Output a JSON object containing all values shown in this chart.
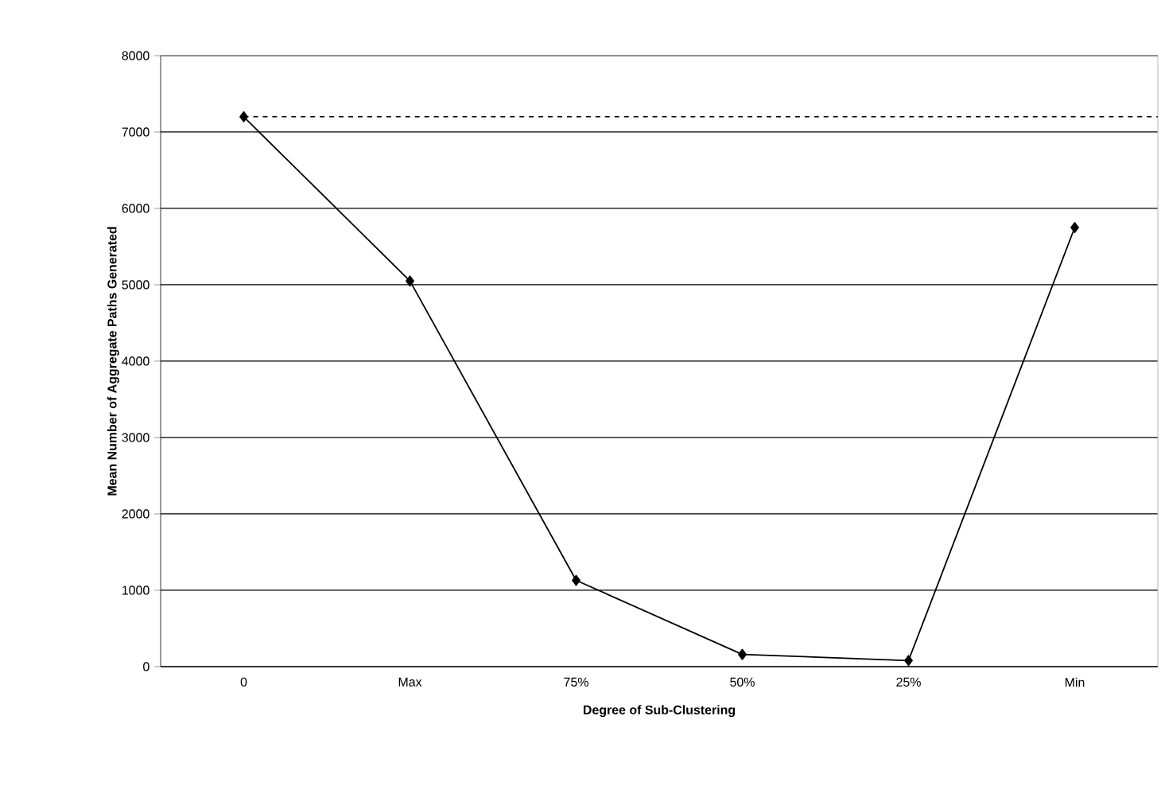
{
  "chart_data": {
    "type": "line",
    "xlabel": "Degree of Sub-Clustering",
    "ylabel": "Mean Number of Aggregate Paths Generated",
    "categories": [
      "0",
      "Max",
      "75%",
      "50%",
      "25%",
      "Min"
    ],
    "series": [
      {
        "color": "#000000",
        "values": [
          7200,
          5050,
          1130,
          160,
          80,
          5750
        ]
      }
    ],
    "ylim": [
      0,
      8000
    ],
    "yticks": [
      0,
      1000,
      2000,
      3000,
      4000,
      5000,
      6000,
      7000,
      8000
    ],
    "grid": "y",
    "marker": "diamond",
    "line_style": "solid",
    "ref_lines": [
      {
        "axis": "y",
        "value": 7200,
        "line_style": "dashed",
        "color": "#000000"
      }
    ]
  }
}
